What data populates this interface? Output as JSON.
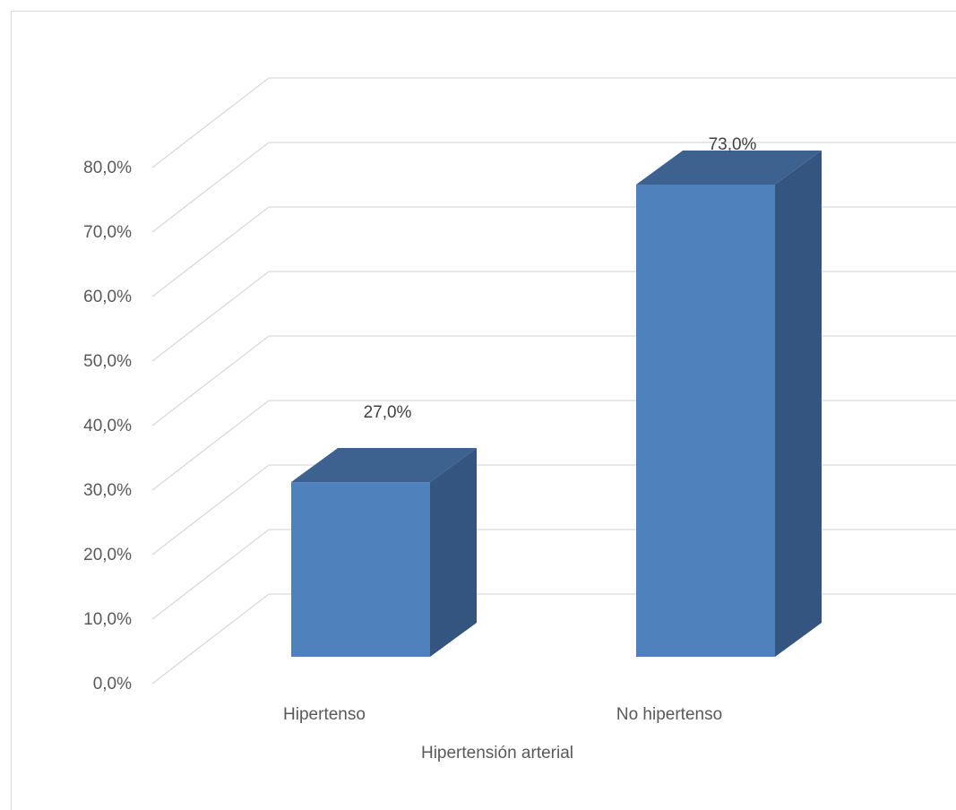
{
  "chart_data": {
    "type": "bar",
    "style": "3d-column",
    "categories": [
      "Hipertenso",
      "No hipertenso"
    ],
    "values": [
      27.0,
      73.0
    ],
    "data_labels": [
      "27,0%",
      "73,0%"
    ],
    "title": "",
    "xlabel": "Hipertensión arterial",
    "ylabel": "",
    "ylim": [
      0,
      80
    ],
    "yticks": [
      0,
      10,
      20,
      30,
      40,
      50,
      60,
      70,
      80
    ],
    "ytick_labels": [
      "0,0%",
      "10,0%",
      "20,0%",
      "30,0%",
      "40,0%",
      "50,0%",
      "60,0%",
      "70,0%",
      "80,0%"
    ],
    "grid": true,
    "legend": "none",
    "colors": {
      "bar_front": "#4f81bd",
      "bar_top": "#3d6290",
      "bar_side": "#33557f",
      "grid": "#d9d9d9"
    }
  }
}
